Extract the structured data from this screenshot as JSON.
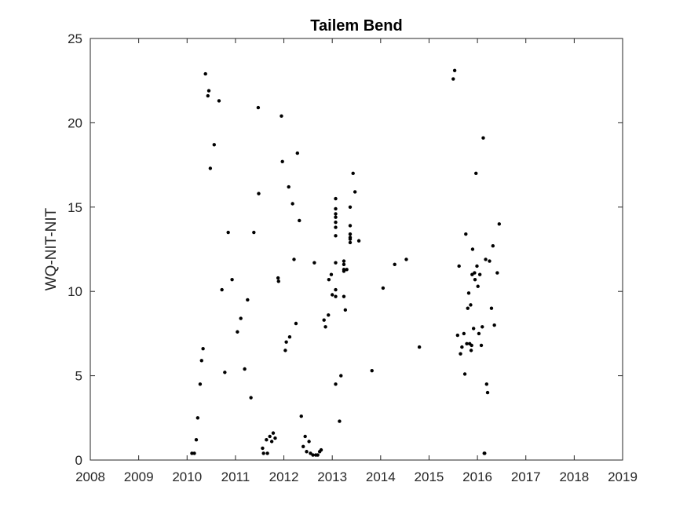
{
  "chart_data": {
    "type": "scatter",
    "title": "Tailem Bend",
    "xlabel": "",
    "ylabel": "WQ-NIT-NIT",
    "xlim": [
      2008,
      2019
    ],
    "ylim": [
      0,
      25
    ],
    "xticks": [
      2008,
      2009,
      2010,
      2011,
      2012,
      2013,
      2014,
      2015,
      2016,
      2017,
      2018,
      2019
    ],
    "yticks": [
      0,
      5,
      10,
      15,
      20,
      25
    ],
    "grid": false,
    "marker_color": "#000000",
    "points": [
      [
        2010.1,
        0.4
      ],
      [
        2010.15,
        0.4
      ],
      [
        2010.19,
        1.2
      ],
      [
        2010.22,
        2.5
      ],
      [
        2010.27,
        4.5
      ],
      [
        2010.3,
        5.9
      ],
      [
        2010.33,
        6.6
      ],
      [
        2010.38,
        22.9
      ],
      [
        2010.43,
        21.6
      ],
      [
        2010.45,
        21.9
      ],
      [
        2010.48,
        17.3
      ],
      [
        2010.56,
        18.7
      ],
      [
        2010.66,
        21.3
      ],
      [
        2010.72,
        10.1
      ],
      [
        2010.78,
        5.2
      ],
      [
        2010.85,
        13.5
      ],
      [
        2010.93,
        10.7
      ],
      [
        2011.04,
        7.6
      ],
      [
        2011.11,
        8.4
      ],
      [
        2011.19,
        5.4
      ],
      [
        2011.25,
        9.5
      ],
      [
        2011.32,
        3.7
      ],
      [
        2011.38,
        13.5
      ],
      [
        2011.47,
        20.9
      ],
      [
        2011.48,
        15.8
      ],
      [
        2011.56,
        0.7
      ],
      [
        2011.58,
        0.4
      ],
      [
        2011.64,
        1.2
      ],
      [
        2011.66,
        0.4
      ],
      [
        2011.71,
        1.4
      ],
      [
        2011.75,
        1.1
      ],
      [
        2011.78,
        1.6
      ],
      [
        2011.82,
        1.3
      ],
      [
        2011.88,
        10.8
      ],
      [
        2011.89,
        10.6
      ],
      [
        2011.95,
        20.4
      ],
      [
        2011.97,
        17.7
      ],
      [
        2012.03,
        6.5
      ],
      [
        2012.05,
        7.0
      ],
      [
        2012.1,
        16.2
      ],
      [
        2012.12,
        7.3
      ],
      [
        2012.18,
        15.2
      ],
      [
        2012.21,
        11.9
      ],
      [
        2012.25,
        8.1
      ],
      [
        2012.28,
        18.2
      ],
      [
        2012.32,
        14.2
      ],
      [
        2012.36,
        2.6
      ],
      [
        2012.4,
        0.8
      ],
      [
        2012.44,
        1.4
      ],
      [
        2012.47,
        0.5
      ],
      [
        2012.52,
        1.1
      ],
      [
        2012.55,
        0.4
      ],
      [
        2012.6,
        0.3
      ],
      [
        2012.63,
        11.7
      ],
      [
        2012.66,
        0.3
      ],
      [
        2012.7,
        0.3
      ],
      [
        2012.74,
        0.5
      ],
      [
        2012.77,
        0.6
      ],
      [
        2012.83,
        8.3
      ],
      [
        2012.86,
        7.9
      ],
      [
        2012.92,
        8.6
      ],
      [
        2012.93,
        10.7
      ],
      [
        2012.98,
        11.0
      ],
      [
        2013.0,
        9.8
      ],
      [
        2013.07,
        15.5
      ],
      [
        2013.07,
        14.9
      ],
      [
        2013.07,
        14.6
      ],
      [
        2013.07,
        14.4
      ],
      [
        2013.07,
        14.1
      ],
      [
        2013.07,
        13.8
      ],
      [
        2013.07,
        13.3
      ],
      [
        2013.07,
        11.7
      ],
      [
        2013.07,
        10.1
      ],
      [
        2013.07,
        9.7
      ],
      [
        2013.07,
        4.5
      ],
      [
        2013.15,
        2.3
      ],
      [
        2013.18,
        5.0
      ],
      [
        2013.24,
        11.8
      ],
      [
        2013.24,
        11.6
      ],
      [
        2013.24,
        11.3
      ],
      [
        2013.24,
        11.2
      ],
      [
        2013.24,
        9.7
      ],
      [
        2013.27,
        8.9
      ],
      [
        2013.3,
        11.3
      ],
      [
        2013.37,
        15.0
      ],
      [
        2013.37,
        13.9
      ],
      [
        2013.37,
        13.4
      ],
      [
        2013.37,
        13.2
      ],
      [
        2013.37,
        13.1
      ],
      [
        2013.37,
        12.9
      ],
      [
        2013.43,
        17.0
      ],
      [
        2013.47,
        15.9
      ],
      [
        2013.55,
        13.0
      ],
      [
        2013.82,
        5.3
      ],
      [
        2014.05,
        10.2
      ],
      [
        2014.29,
        11.6
      ],
      [
        2014.53,
        11.9
      ],
      [
        2014.8,
        6.7
      ],
      [
        2015.5,
        22.6
      ],
      [
        2015.53,
        23.1
      ],
      [
        2015.59,
        7.4
      ],
      [
        2015.62,
        11.5
      ],
      [
        2015.65,
        6.3
      ],
      [
        2015.68,
        6.7
      ],
      [
        2015.72,
        7.5
      ],
      [
        2015.74,
        5.1
      ],
      [
        2015.76,
        13.4
      ],
      [
        2015.78,
        6.9
      ],
      [
        2015.8,
        9.0
      ],
      [
        2015.82,
        9.9
      ],
      [
        2015.84,
        6.9
      ],
      [
        2015.86,
        9.2
      ],
      [
        2015.87,
        6.5
      ],
      [
        2015.88,
        6.8
      ],
      [
        2015.89,
        11.0
      ],
      [
        2015.9,
        12.5
      ],
      [
        2015.92,
        7.8
      ],
      [
        2015.94,
        11.1
      ],
      [
        2015.95,
        10.7
      ],
      [
        2015.97,
        17.0
      ],
      [
        2015.99,
        11.5
      ],
      [
        2016.01,
        10.3
      ],
      [
        2016.03,
        7.5
      ],
      [
        2016.05,
        11.0
      ],
      [
        2016.08,
        6.8
      ],
      [
        2016.1,
        7.9
      ],
      [
        2016.12,
        19.1
      ],
      [
        2016.14,
        0.4
      ],
      [
        2016.15,
        0.4
      ],
      [
        2016.17,
        11.9
      ],
      [
        2016.19,
        4.5
      ],
      [
        2016.21,
        4.0
      ],
      [
        2016.25,
        11.8
      ],
      [
        2016.29,
        9.0
      ],
      [
        2016.32,
        12.7
      ],
      [
        2016.35,
        8.0
      ],
      [
        2016.41,
        11.1
      ],
      [
        2016.45,
        14.0
      ]
    ]
  }
}
